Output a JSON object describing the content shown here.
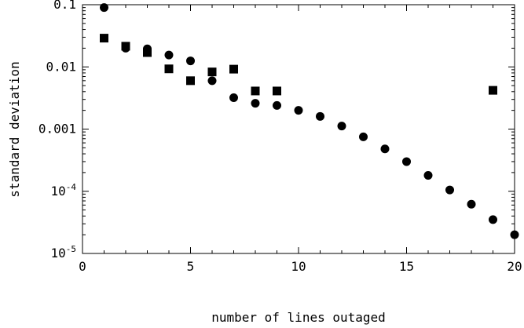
{
  "chart_data": {
    "type": "scatter",
    "title": "",
    "xlabel": "number of lines outaged",
    "ylabel": "standard deviation",
    "xlim": [
      0,
      20
    ],
    "ylim": [
      1e-05,
      0.1
    ],
    "y_scale": "log",
    "grid": false,
    "legend": "none",
    "x_ticks": [
      0,
      5,
      10,
      15,
      20
    ],
    "x_tick_labels": [
      "0",
      "5",
      "10",
      "15",
      "20"
    ],
    "y_ticks": [
      {
        "value": 0.1,
        "label": "0.1"
      },
      {
        "value": 0.01,
        "label": "0.01"
      },
      {
        "value": 0.001,
        "label": "0.001"
      },
      {
        "value": 0.0001,
        "base": "10",
        "exp": "-4"
      },
      {
        "value": 1e-05,
        "base": "10",
        "exp": "-5"
      }
    ],
    "series": [
      {
        "marker": "circle",
        "color": "#000000",
        "points": [
          [
            1,
            0.09
          ],
          [
            2,
            0.02
          ],
          [
            3,
            0.0195
          ],
          [
            4,
            0.0155
          ],
          [
            5,
            0.0125
          ],
          [
            6,
            0.006
          ],
          [
            7,
            0.0032
          ],
          [
            8,
            0.0026
          ],
          [
            9,
            0.0024
          ],
          [
            10,
            0.002
          ],
          [
            11,
            0.0016
          ],
          [
            12,
            0.00112
          ],
          [
            13,
            0.00075
          ],
          [
            14,
            0.00048
          ],
          [
            15,
            0.0003
          ],
          [
            16,
            0.00018
          ],
          [
            17,
            0.000105
          ],
          [
            18,
            6.2e-05
          ],
          [
            19,
            3.5e-05
          ],
          [
            20,
            2e-05
          ]
        ]
      },
      {
        "marker": "square",
        "color": "#000000",
        "points": [
          [
            1,
            0.029
          ],
          [
            2,
            0.0215
          ],
          [
            3,
            0.017
          ],
          [
            4,
            0.0093
          ],
          [
            5,
            0.006
          ],
          [
            6,
            0.0083
          ],
          [
            7,
            0.0092
          ],
          [
            8,
            0.0041
          ],
          [
            9,
            0.0041
          ],
          [
            19,
            0.0042
          ]
        ]
      }
    ]
  }
}
